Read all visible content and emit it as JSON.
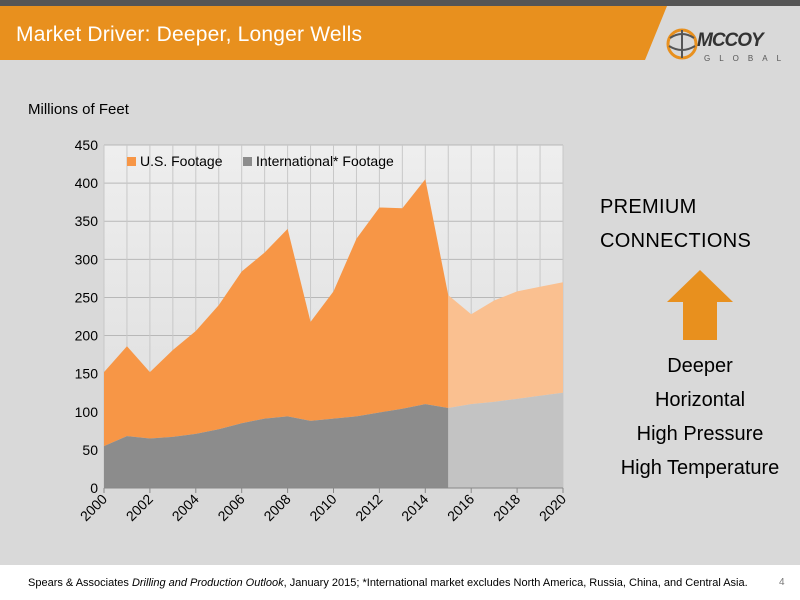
{
  "slide": {
    "title": "Market Driver: Deeper, Longer Wells",
    "page_number": "4"
  },
  "logo": {
    "wordmark": "MCCOY",
    "sub": "GLOBAL"
  },
  "chart_data": {
    "type": "area",
    "ylabel": "Millions of Feet",
    "ylim": [
      0,
      450
    ],
    "yticks": [
      0,
      50,
      100,
      150,
      200,
      250,
      300,
      350,
      400,
      450
    ],
    "xlim": [
      2000,
      2020
    ],
    "xtick_labels": [
      "2000",
      "2002",
      "2004",
      "2006",
      "2008",
      "2010",
      "2012",
      "2014",
      "2016",
      "2018",
      "2020"
    ],
    "x": [
      2000,
      2001,
      2002,
      2003,
      2004,
      2005,
      2006,
      2007,
      2008,
      2009,
      2010,
      2011,
      2012,
      2013,
      2014,
      2015,
      2016,
      2017,
      2018,
      2019,
      2020
    ],
    "forecast_from": 2015,
    "stacked": true,
    "grid": true,
    "legend_position": "top-left",
    "series": [
      {
        "name": "U.S. Footage",
        "color": "#f79646",
        "forecast_color": "#fac090",
        "values": [
          97,
          118,
          87,
          114,
          135,
          163,
          199,
          218,
          246,
          130,
          167,
          233,
          269,
          263,
          295,
          148,
          118,
          133,
          141,
          143,
          145
        ]
      },
      {
        "name": "International* Footage",
        "color": "#8c8c8c",
        "forecast_color": "#c3c3c3",
        "values": [
          55,
          68,
          65,
          67,
          71,
          77,
          85,
          91,
          94,
          88,
          91,
          94,
          99,
          104,
          110,
          105,
          110,
          113,
          117,
          121,
          125
        ]
      }
    ]
  },
  "right_panel": {
    "heading_line1": "PREMIUM",
    "heading_line2": "CONNECTIONS",
    "arrow_color": "#e8901e",
    "drivers": [
      "Deeper",
      "Horizontal",
      "High Pressure",
      "High Temperature"
    ]
  },
  "footer": {
    "source_prefix": "Spears & Associates ",
    "source_title": "Drilling and Production Outlook",
    "source_suffix": ", January 2015; *International market excludes North America, Russia, China, and Central Asia."
  }
}
